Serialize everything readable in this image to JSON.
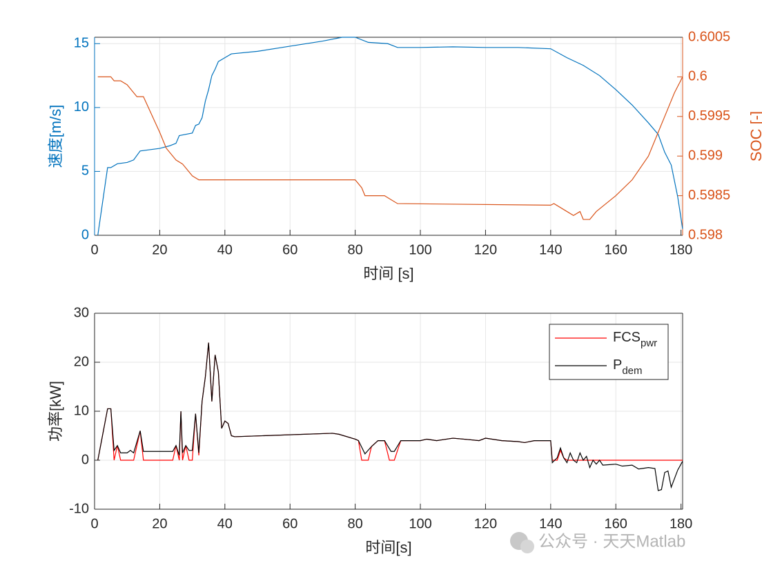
{
  "chart_data": [
    {
      "type": "line",
      "xlabel": "时间 [s]",
      "ylabel": "速度[m/s]",
      "y2label": "SOC [-]",
      "xlim": [
        0,
        180.5
      ],
      "xticks": [
        0,
        20,
        40,
        60,
        80,
        100,
        120,
        140,
        160,
        180
      ],
      "ylim": [
        0,
        15.5
      ],
      "yticks": [
        0,
        5,
        10,
        15
      ],
      "y2lim": [
        0.598,
        0.6005
      ],
      "y2ticks": [
        0.598,
        0.5985,
        0.599,
        0.5995,
        0.6,
        0.6005
      ],
      "grid": true,
      "ycolor": "#0072BD",
      "y2color": "#D95319",
      "series": [
        {
          "color": "#0072BD",
          "x": [
            1,
            4,
            5,
            7,
            10,
            12,
            14,
            20,
            23,
            25,
            26,
            28,
            30,
            31,
            32,
            33,
            34,
            35,
            36,
            37,
            38,
            40,
            42,
            50,
            60,
            70,
            76,
            80,
            84,
            90,
            93,
            100,
            110,
            120,
            130,
            140,
            145,
            150,
            155,
            160,
            165,
            170,
            173,
            175,
            177,
            179,
            180.5
          ],
          "values": [
            0,
            5.3,
            5.3,
            5.6,
            5.7,
            5.9,
            6.6,
            6.8,
            7.0,
            7.2,
            7.8,
            7.9,
            8.0,
            8.6,
            8.7,
            9.2,
            10.5,
            11.4,
            12.5,
            13.0,
            13.6,
            13.9,
            14.2,
            14.4,
            14.8,
            15.2,
            15.5,
            15.5,
            15.1,
            15.0,
            14.7,
            14.7,
            14.75,
            14.7,
            14.7,
            14.6,
            13.9,
            13.3,
            12.5,
            11.4,
            10.2,
            8.8,
            7.9,
            6.5,
            5.5,
            3.0,
            0.5
          ]
        },
        {
          "color": "#D95319",
          "axis": "y2",
          "x": [
            1,
            5,
            6,
            8,
            10,
            12,
            13,
            15,
            20,
            22,
            24,
            25,
            27,
            28,
            29,
            30,
            32,
            80,
            82,
            83,
            89,
            91,
            93,
            140,
            141,
            143,
            145,
            147,
            149,
            150,
            152,
            154,
            157,
            160,
            165,
            170,
            173,
            176,
            178,
            180.5
          ],
          "values": [
            0.6,
            0.6,
            0.59995,
            0.59995,
            0.5999,
            0.5998,
            0.59975,
            0.59975,
            0.5993,
            0.5991,
            0.599,
            0.59895,
            0.5989,
            0.59885,
            0.5988,
            0.59875,
            0.5987,
            0.5987,
            0.5986,
            0.5985,
            0.5985,
            0.59845,
            0.5984,
            0.59838,
            0.5984,
            0.59835,
            0.5983,
            0.59825,
            0.5983,
            0.5982,
            0.5982,
            0.5983,
            0.5984,
            0.5985,
            0.5987,
            0.599,
            0.5993,
            0.5996,
            0.5998,
            0.6
          ]
        }
      ]
    },
    {
      "type": "line",
      "xlabel": "时间[s]",
      "ylabel": "功率[kW]",
      "xlim": [
        0,
        180.5
      ],
      "xticks": [
        0,
        20,
        40,
        60,
        80,
        100,
        120,
        140,
        160,
        180
      ],
      "ylim": [
        -10,
        30
      ],
      "yticks": [
        -10,
        0,
        10,
        20,
        30
      ],
      "grid": true,
      "legend": "northeast",
      "series": [
        {
          "name": "FCS",
          "name_sub": "pwr",
          "color": "#FF0000",
          "x": [
            1,
            3,
            4,
            5,
            6,
            7,
            8,
            10,
            11,
            12,
            14,
            15,
            24,
            25,
            26,
            26.5,
            27,
            28,
            29,
            30,
            31,
            32,
            33,
            34,
            35,
            36,
            37,
            38,
            39,
            40,
            41,
            42,
            43,
            73,
            75,
            80,
            81,
            82,
            84,
            85,
            87,
            89,
            90.5,
            92,
            94,
            100,
            102,
            105,
            107,
            110,
            115,
            118,
            120,
            125,
            130,
            132,
            135,
            138,
            140,
            140.5,
            142,
            143,
            144,
            145,
            180.5
          ],
          "values": [
            0,
            7,
            10.5,
            10.5,
            0,
            3,
            0,
            0,
            0,
            0,
            6,
            0,
            0,
            3,
            0,
            10,
            0,
            3,
            0,
            0,
            9.5,
            1,
            12,
            17,
            24,
            12,
            21.5,
            18,
            6.5,
            8,
            7.5,
            5,
            4.8,
            5.5,
            5.3,
            4.3,
            4.0,
            0,
            0,
            2.8,
            4,
            4,
            0,
            0,
            4,
            4,
            4.3,
            4,
            4.2,
            4.5,
            4.2,
            4,
            4.5,
            4,
            3.8,
            3.6,
            4,
            4,
            4,
            0,
            0,
            2,
            0.5,
            0,
            0
          ]
        },
        {
          "name": "P",
          "name_sub": "dem",
          "color": "#000000",
          "x": [
            1,
            3,
            4,
            5,
            6,
            7,
            8,
            10,
            11,
            12,
            14,
            15,
            24,
            25,
            26,
            26.5,
            27,
            28,
            29,
            30,
            31,
            32,
            33,
            34,
            35,
            36,
            37,
            38,
            39,
            40,
            41,
            42,
            43,
            73,
            75,
            80,
            81,
            83,
            85,
            87,
            89,
            91,
            92,
            94,
            100,
            102,
            105,
            107,
            110,
            115,
            118,
            120,
            125,
            130,
            132,
            135,
            138,
            140,
            140.5,
            142,
            143,
            144,
            145,
            146,
            147,
            148,
            149,
            150,
            151,
            152,
            153,
            154,
            155,
            156,
            160,
            162,
            165,
            167,
            170,
            172,
            173,
            174,
            175,
            176,
            177,
            179,
            180.5
          ],
          "values": [
            0,
            7,
            10.5,
            10.5,
            2,
            3,
            1.5,
            1.5,
            2,
            1.5,
            6,
            1.8,
            1.8,
            3,
            1,
            10,
            1.5,
            3,
            2,
            2,
            9.5,
            1.5,
            12,
            17,
            24,
            12,
            21.5,
            18,
            6.5,
            8,
            7.5,
            5,
            4.8,
            5.5,
            5.3,
            4.3,
            4.0,
            1.3,
            2.8,
            4,
            4,
            1.8,
            1.8,
            4,
            4,
            4.3,
            4,
            4.2,
            4.5,
            4.2,
            4,
            4.5,
            4,
            3.8,
            3.6,
            4,
            4,
            4,
            -0.5,
            0.5,
            2.5,
            0.5,
            -0.5,
            1.5,
            0,
            -0.5,
            1.5,
            0,
            0.8,
            -1.5,
            0,
            -0.8,
            0,
            -1,
            -0.8,
            -1.2,
            -1,
            -1.8,
            -1.5,
            -1.7,
            -6.2,
            -6.0,
            -2.5,
            -2.2,
            -5.5,
            -2.0,
            -0.2
          ]
        }
      ]
    }
  ],
  "watermark": "公众号 · 天天Matlab"
}
